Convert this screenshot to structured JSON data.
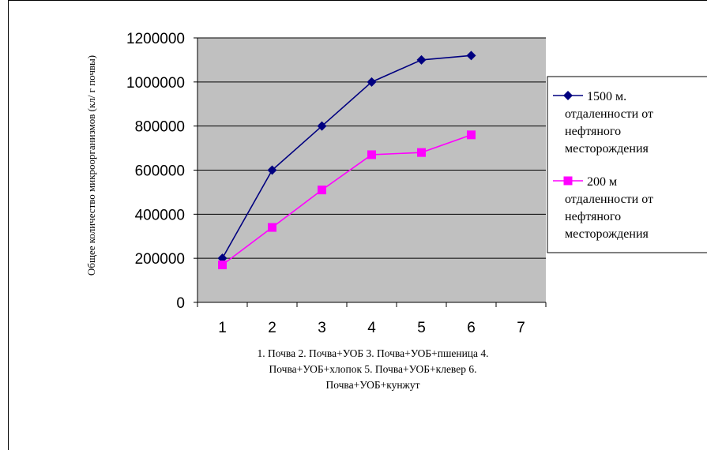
{
  "chart_data": {
    "type": "line",
    "x": [
      1,
      2,
      3,
      4,
      5,
      6
    ],
    "xticks": [
      "1",
      "2",
      "3",
      "4",
      "5",
      "6",
      "7"
    ],
    "yticks": [
      "0",
      "200000",
      "400000",
      "600000",
      "800000",
      "1000000",
      "1200000"
    ],
    "ylim": [
      0,
      1200000
    ],
    "xlim": [
      0.5,
      7.5
    ],
    "ylabel": "Общее количество микроорганизмов (кл/ г почвы)",
    "xlabel": "1. Почва 2. Почва+УОБ 3. Почва+УОБ+пшеница 4. Почва+УОБ+хлопок 5. Почва+УОБ+клевер 6. Почва+УОБ+кунжут",
    "xlabel_lines": [
      "1. Почва 2. Почва+УОБ 3. Почва+УОБ+пшеница 4.",
      "Почва+УОБ+хлопок 5. Почва+УОБ+клевер 6.",
      "Почва+УОБ+кунжут"
    ],
    "grid": true,
    "plot_background": "#c0c0c0",
    "legend_position": "right",
    "series": [
      {
        "name": "1500 м. отдаленности от нефтяного месторождения",
        "legend_lines": [
          "1500 м.",
          "отдаленности от",
          "нефтяного",
          "месторождения"
        ],
        "color": "#000080",
        "marker": "diamond",
        "values": [
          200000,
          600000,
          800000,
          1000000,
          1100000,
          1120000
        ]
      },
      {
        "name": "200 м отдаленности от нефтяного месторождения",
        "legend_lines": [
          "200 м",
          "отдаленности от",
          "нефтяного",
          "месторождения"
        ],
        "color": "#ff00ff",
        "marker": "square",
        "values": [
          170000,
          340000,
          510000,
          670000,
          680000,
          760000
        ]
      }
    ]
  }
}
